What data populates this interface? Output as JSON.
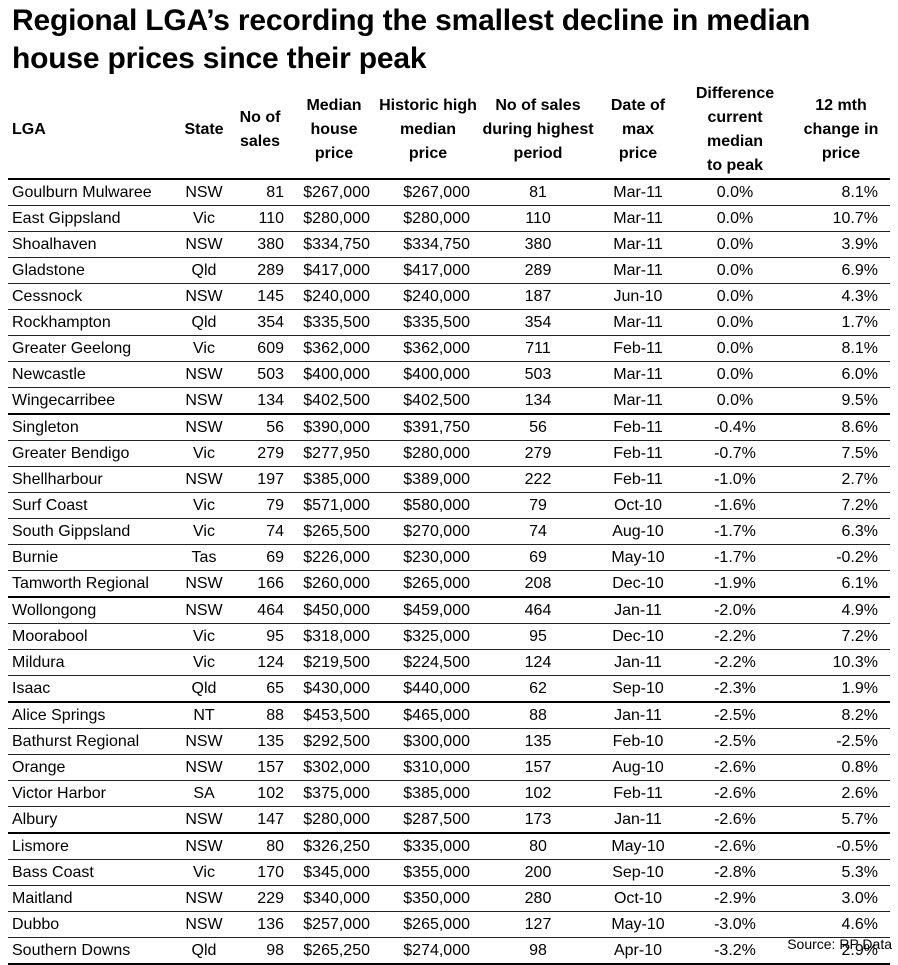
{
  "chart_data": {
    "type": "table",
    "title": "Regional LGA’s recording the smallest decline in median house prices since their peak",
    "columns": [
      [
        "LGA"
      ],
      [
        "State"
      ],
      [
        "No of",
        "sales"
      ],
      [
        "Median",
        "house",
        "price"
      ],
      [
        "Historic high",
        "median",
        "price"
      ],
      [
        "No of sales",
        "during highest",
        "period"
      ],
      [
        "Date of",
        "max",
        "price"
      ],
      [
        "Difference",
        "current median",
        "to peak"
      ],
      [
        "12 mth",
        "change in",
        "price"
      ]
    ],
    "rows": [
      [
        "Goulburn Mulwaree",
        "NSW",
        "81",
        "$267,000",
        "$267,000",
        "81",
        "Mar-11",
        "0.0%",
        "8.1%"
      ],
      [
        "East Gippsland",
        "Vic",
        "110",
        "$280,000",
        "$280,000",
        "110",
        "Mar-11",
        "0.0%",
        "10.7%"
      ],
      [
        "Shoalhaven",
        "NSW",
        "380",
        "$334,750",
        "$334,750",
        "380",
        "Mar-11",
        "0.0%",
        "3.9%"
      ],
      [
        "Gladstone",
        "Qld",
        "289",
        "$417,000",
        "$417,000",
        "289",
        "Mar-11",
        "0.0%",
        "6.9%"
      ],
      [
        "Cessnock",
        "NSW",
        "145",
        "$240,000",
        "$240,000",
        "187",
        "Jun-10",
        "0.0%",
        "4.3%"
      ],
      [
        "Rockhampton",
        "Qld",
        "354",
        "$335,500",
        "$335,500",
        "354",
        "Mar-11",
        "0.0%",
        "1.7%"
      ],
      [
        "Greater Geelong",
        "Vic",
        "609",
        "$362,000",
        "$362,000",
        "711",
        "Feb-11",
        "0.0%",
        "8.1%"
      ],
      [
        "Newcastle",
        "NSW",
        "503",
        "$400,000",
        "$400,000",
        "503",
        "Mar-11",
        "0.0%",
        "6.0%"
      ],
      [
        "Wingecarribee",
        "NSW",
        "134",
        "$402,500",
        "$402,500",
        "134",
        "Mar-11",
        "0.0%",
        "9.5%"
      ],
      [
        "Singleton",
        "NSW",
        "56",
        "$390,000",
        "$391,750",
        "56",
        "Feb-11",
        "-0.4%",
        "8.6%"
      ],
      [
        "Greater Bendigo",
        "Vic",
        "279",
        "$277,950",
        "$280,000",
        "279",
        "Feb-11",
        "-0.7%",
        "7.5%"
      ],
      [
        "Shellharbour",
        "NSW",
        "197",
        "$385,000",
        "$389,000",
        "222",
        "Feb-11",
        "-1.0%",
        "2.7%"
      ],
      [
        "Surf Coast",
        "Vic",
        "79",
        "$571,000",
        "$580,000",
        "79",
        "Oct-10",
        "-1.6%",
        "7.2%"
      ],
      [
        "South Gippsland",
        "Vic",
        "74",
        "$265,500",
        "$270,000",
        "74",
        "Aug-10",
        "-1.7%",
        "6.3%"
      ],
      [
        "Burnie",
        "Tas",
        "69",
        "$226,000",
        "$230,000",
        "69",
        "May-10",
        "-1.7%",
        "-0.2%"
      ],
      [
        "Tamworth Regional",
        "NSW",
        "166",
        "$260,000",
        "$265,000",
        "208",
        "Dec-10",
        "-1.9%",
        "6.1%"
      ],
      [
        "Wollongong",
        "NSW",
        "464",
        "$450,000",
        "$459,000",
        "464",
        "Jan-11",
        "-2.0%",
        "4.9%"
      ],
      [
        "Moorabool",
        "Vic",
        "95",
        "$318,000",
        "$325,000",
        "95",
        "Dec-10",
        "-2.2%",
        "7.2%"
      ],
      [
        "Mildura",
        "Vic",
        "124",
        "$219,500",
        "$224,500",
        "124",
        "Jan-11",
        "-2.2%",
        "10.3%"
      ],
      [
        "Isaac",
        "Qld",
        "65",
        "$430,000",
        "$440,000",
        "62",
        "Sep-10",
        "-2.3%",
        "1.9%"
      ],
      [
        "Alice Springs",
        "NT",
        "88",
        "$453,500",
        "$465,000",
        "88",
        "Jan-11",
        "-2.5%",
        "8.2%"
      ],
      [
        "Bathurst Regional",
        "NSW",
        "135",
        "$292,500",
        "$300,000",
        "135",
        "Feb-10",
        "-2.5%",
        "-2.5%"
      ],
      [
        "Orange",
        "NSW",
        "157",
        "$302,000",
        "$310,000",
        "157",
        "Aug-10",
        "-2.6%",
        "0.8%"
      ],
      [
        "Victor Harbor",
        "SA",
        "102",
        "$375,000",
        "$385,000",
        "102",
        "Feb-11",
        "-2.6%",
        "2.6%"
      ],
      [
        "Albury",
        "NSW",
        "147",
        "$280,000",
        "$287,500",
        "173",
        "Jan-11",
        "-2.6%",
        "5.7%"
      ],
      [
        "Lismore",
        "NSW",
        "80",
        "$326,250",
        "$335,000",
        "80",
        "May-10",
        "-2.6%",
        "-0.5%"
      ],
      [
        "Bass Coast",
        "Vic",
        "170",
        "$345,000",
        "$355,000",
        "200",
        "Sep-10",
        "-2.8%",
        "5.3%"
      ],
      [
        "Maitland",
        "NSW",
        "229",
        "$340,000",
        "$350,000",
        "280",
        "Oct-10",
        "-2.9%",
        "3.0%"
      ],
      [
        "Dubbo",
        "NSW",
        "136",
        "$257,000",
        "$265,000",
        "127",
        "May-10",
        "-3.0%",
        "4.6%"
      ],
      [
        "Southern Downs",
        "Qld",
        "98",
        "$265,250",
        "$274,000",
        "98",
        "Apr-10",
        "-3.2%",
        "2.9%"
      ]
    ],
    "source": "Source: RP Data"
  }
}
